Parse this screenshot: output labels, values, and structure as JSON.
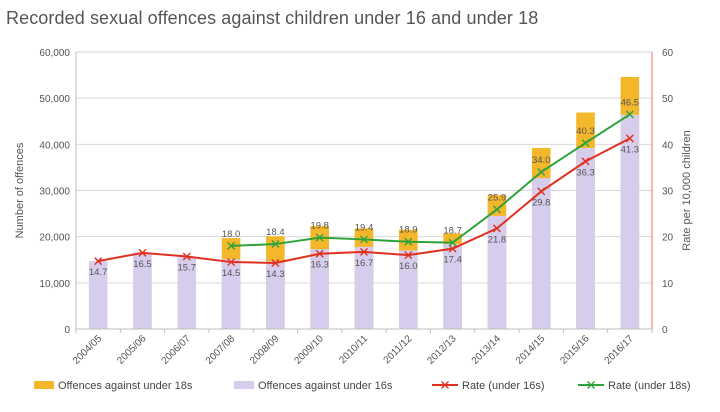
{
  "chart_data": {
    "type": "bar",
    "title": "Recorded sexual offences against children under 16 and under 18",
    "ylabel": "Number of offences",
    "y2label": "Rate per 10,000 children",
    "ylim": [
      0,
      60000
    ],
    "y2lim": [
      0,
      60
    ],
    "yticks": [
      "0",
      "10,000",
      "20,000",
      "30,000",
      "40,000",
      "50,000",
      "60,000"
    ],
    "y2ticks": [
      "0",
      "10",
      "20",
      "30",
      "40",
      "50",
      "60"
    ],
    "legend_position": "bottom",
    "categories": [
      "2004/05",
      "2005/06",
      "2006/07",
      "2007/08",
      "2008/09",
      "2009/10",
      "2010/11",
      "2011/12",
      "2012/13",
      "2013/14",
      "2014/15",
      "2015/16",
      "2016/17"
    ],
    "series": [
      {
        "name": "Offences against under 18s",
        "kind": "bar",
        "axis": "left",
        "color": "#f4b72b",
        "values": [
          null,
          null,
          null,
          19700,
          20100,
          22300,
          21800,
          21500,
          20700,
          29000,
          39200,
          46900,
          54600
        ]
      },
      {
        "name": "Offences against under 16s",
        "kind": "bar",
        "axis": "left",
        "color": "#d6ccec",
        "values": [
          14700,
          16600,
          15500,
          15100,
          14700,
          17300,
          17800,
          17000,
          18400,
          24500,
          32700,
          39200,
          46400
        ]
      },
      {
        "name": "Rate (under 16s)",
        "kind": "line",
        "axis": "right",
        "color": "#e0301e",
        "values": [
          14.7,
          16.5,
          15.7,
          14.5,
          14.3,
          16.3,
          16.7,
          16.0,
          17.4,
          21.8,
          29.8,
          36.3,
          41.3
        ],
        "labels": [
          "14.7",
          "16.5",
          "15.7",
          "14.5",
          "14.3",
          "16.3",
          "16.7",
          "16.0",
          "17.4",
          "21.8",
          "29.8",
          "36.3",
          "41.3"
        ]
      },
      {
        "name": "Rate (under 18s)",
        "kind": "line",
        "axis": "right",
        "color": "#2ea33a",
        "values": [
          null,
          null,
          null,
          18.0,
          18.4,
          19.8,
          19.4,
          18.9,
          18.7,
          25.9,
          34.0,
          40.3,
          46.5
        ],
        "labels": [
          null,
          null,
          null,
          "18.0",
          "18.4",
          "19.8",
          "19.4",
          "18.9",
          "18.7",
          "25.9",
          "34.0",
          "40.3",
          "46.5"
        ]
      }
    ]
  }
}
